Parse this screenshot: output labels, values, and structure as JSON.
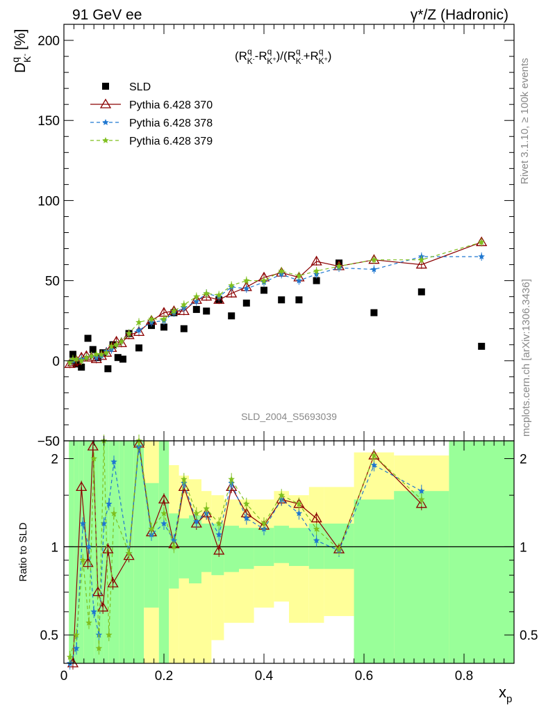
{
  "header": {
    "left": "91 GeV ee",
    "right": "γ*/Z (Hadronic)"
  },
  "main_plot": {
    "ylabel_main": "D",
    "ylabel_super": "q",
    "ylabel_sub": "K",
    "ylabel_subsup": "-",
    "ylabel_unit": "[%]",
    "formula": "(R",
    "formula_full": "(R_{K-}^q - R_{K+}^q)/(R_{K-}^q + R_{K+}^q)",
    "watermark": "SLD_2004_S5693039",
    "yticks": [
      "200",
      "150",
      "100",
      "50",
      "0",
      "−50"
    ]
  },
  "ratio_plot": {
    "ylabel": "Ratio to SLD",
    "ticks_left": [
      "2",
      "1",
      "0.5"
    ],
    "ticks_right": [
      "2",
      "1",
      "0.5"
    ]
  },
  "x_axis": {
    "label": "x",
    "label_sub": "p",
    "ticks": [
      "0",
      "0.2",
      "0.4",
      "0.6",
      "0.8"
    ]
  },
  "side_labels": {
    "rivet": "Rivet 3.1.10, ≥ 100k events",
    "mcplots": "mcplots.cern.ch [arXiv:1306.3436]"
  },
  "legend": [
    {
      "name": "SLD",
      "color": "#000000"
    },
    {
      "name": "Pythia 6.428 370",
      "color": "#8b0000"
    },
    {
      "name": "Pythia 6.428 378",
      "color": "#1f77d0"
    },
    {
      "name": "Pythia 6.428 379",
      "color": "#7fbf1f"
    }
  ],
  "chart_data": {
    "type": "scatter",
    "xlim": [
      0,
      0.9
    ],
    "ylim": [
      -50,
      210
    ],
    "ratio_ylim": [
      0.4,
      2.3
    ],
    "ratio_scale": "log",
    "grid": false,
    "legend_position": "top-left",
    "series": [
      {
        "name": "SLD",
        "color": "#000000",
        "x": [
          0.018,
          0.025,
          0.035,
          0.048,
          0.058,
          0.068,
          0.078,
          0.088,
          0.098,
          0.108,
          0.118,
          0.13,
          0.15,
          0.175,
          0.2,
          0.22,
          0.24,
          0.265,
          0.285,
          0.31,
          0.335,
          0.365,
          0.4,
          0.435,
          0.47,
          0.505,
          0.55,
          0.62,
          0.715,
          0.835
        ],
        "y": [
          4,
          -2,
          -4,
          14,
          7,
          2,
          5,
          -5,
          10,
          2,
          1,
          17,
          8,
          22,
          21,
          30,
          20,
          32,
          31,
          38,
          28,
          36,
          44,
          38,
          38,
          50,
          61,
          30,
          43,
          9
        ]
      },
      {
        "name": "Pythia 6.428 370",
        "color": "#8b0000",
        "x": [
          0.012,
          0.018,
          0.025,
          0.035,
          0.045,
          0.055,
          0.065,
          0.075,
          0.085,
          0.095,
          0.105,
          0.115,
          0.13,
          0.15,
          0.175,
          0.2,
          0.22,
          0.24,
          0.265,
          0.285,
          0.31,
          0.335,
          0.365,
          0.4,
          0.435,
          0.47,
          0.505,
          0.55,
          0.62,
          0.715,
          0.835
        ],
        "y": [
          -2,
          -1,
          0,
          2,
          3,
          2,
          1,
          3,
          5,
          8,
          12,
          11,
          16,
          18,
          25,
          30,
          31,
          31,
          38,
          40,
          38,
          42,
          46,
          52,
          55,
          52,
          62,
          59,
          63,
          60,
          74
        ]
      },
      {
        "name": "Pythia 6.428 378",
        "color": "#1f77d0",
        "x": [
          0.012,
          0.018,
          0.025,
          0.035,
          0.045,
          0.055,
          0.065,
          0.075,
          0.085,
          0.095,
          0.105,
          0.115,
          0.13,
          0.15,
          0.175,
          0.2,
          0.22,
          0.24,
          0.265,
          0.285,
          0.31,
          0.335,
          0.365,
          0.4,
          0.435,
          0.47,
          0.505,
          0.55,
          0.62,
          0.715,
          0.835
        ],
        "y": [
          -1,
          0,
          1,
          1,
          2,
          3,
          2,
          3,
          6,
          7,
          10,
          12,
          17,
          19,
          24,
          25,
          30,
          33,
          37,
          42,
          40,
          46,
          45,
          49,
          54,
          50,
          54,
          58,
          57,
          65,
          65
        ]
      },
      {
        "name": "Pythia 6.428 379",
        "color": "#7fbf1f",
        "x": [
          0.012,
          0.018,
          0.025,
          0.035,
          0.045,
          0.055,
          0.065,
          0.075,
          0.085,
          0.095,
          0.105,
          0.115,
          0.13,
          0.15,
          0.175,
          0.2,
          0.22,
          0.24,
          0.265,
          0.285,
          0.31,
          0.335,
          0.365,
          0.4,
          0.435,
          0.47,
          0.505,
          0.55,
          0.62,
          0.715,
          0.835
        ],
        "y": [
          -1,
          1,
          1,
          0,
          2,
          3,
          4,
          4,
          5,
          9,
          10,
          12,
          17,
          24,
          26,
          26,
          31,
          35,
          40,
          42,
          41,
          47,
          50,
          50,
          56,
          53,
          56,
          59,
          63,
          63,
          74
        ]
      }
    ],
    "ratio_series": [
      {
        "name": "Pythia 6.428 370",
        "x": [
          0.018,
          0.035,
          0.048,
          0.058,
          0.068,
          0.078,
          0.088,
          0.098,
          0.13,
          0.15,
          0.175,
          0.2,
          0.22,
          0.24,
          0.265,
          0.285,
          0.31,
          0.335,
          0.365,
          0.4,
          0.435,
          0.47,
          0.505,
          0.55,
          0.62,
          0.715
        ],
        "y": [
          0.3,
          1.6,
          0.88,
          2.2,
          0.7,
          0.62,
          0.98,
          0.75,
          0.93,
          2.25,
          1.12,
          1.45,
          1.02,
          1.6,
          1.2,
          1.3,
          0.97,
          1.6,
          1.3,
          1.18,
          1.45,
          1.4,
          1.25,
          0.98,
          2.05,
          1.4
        ]
      },
      {
        "name": "Pythia 6.428 378",
        "x": [
          0.012,
          0.025,
          0.038,
          0.05,
          0.06,
          0.07,
          0.08,
          0.09,
          0.1,
          0.13,
          0.15,
          0.175,
          0.2,
          0.22,
          0.24,
          0.265,
          0.285,
          0.31,
          0.335,
          0.365,
          0.4,
          0.435,
          0.47,
          0.505,
          0.55,
          0.62,
          0.715
        ],
        "y": [
          0.38,
          0.45,
          1.2,
          1.0,
          0.6,
          0.5,
          1.2,
          1.4,
          1.95,
          0.95,
          2.2,
          1.1,
          1.2,
          1.05,
          1.65,
          1.22,
          1.3,
          1.1,
          1.65,
          1.25,
          1.15,
          1.45,
          1.3,
          1.05,
          0.97,
          1.9,
          1.55
        ]
      },
      {
        "name": "Pythia 6.428 379",
        "x": [
          0.012,
          0.025,
          0.038,
          0.05,
          0.06,
          0.07,
          0.08,
          0.09,
          0.1,
          0.13,
          0.15,
          0.175,
          0.2,
          0.22,
          0.24,
          0.265,
          0.285,
          0.31,
          0.335,
          0.365,
          0.4,
          0.435,
          0.47,
          0.505,
          0.55,
          0.62,
          0.715
        ],
        "y": [
          0.42,
          0.5,
          0.9,
          0.55,
          2.0,
          0.45,
          2.3,
          0.5,
          1.3,
          0.95,
          2.3,
          1.15,
          1.3,
          1.0,
          1.7,
          1.3,
          1.35,
          1.2,
          1.7,
          1.4,
          1.2,
          1.5,
          1.4,
          1.15,
          0.98,
          2.05,
          1.45
        ]
      }
    ],
    "ratio_bands": {
      "x_edges": [
        0.01,
        0.02,
        0.03,
        0.04,
        0.05,
        0.06,
        0.07,
        0.08,
        0.09,
        0.1,
        0.11,
        0.12,
        0.14,
        0.16,
        0.19,
        0.21,
        0.23,
        0.25,
        0.275,
        0.295,
        0.32,
        0.35,
        0.38,
        0.42,
        0.45,
        0.49,
        0.52,
        0.58,
        0.66,
        0.77,
        0.9
      ],
      "green_lo": [
        0.4,
        0.4,
        0.4,
        0.4,
        0.4,
        0.4,
        0.4,
        0.4,
        0.4,
        0.4,
        0.4,
        0.4,
        0.4,
        0.62,
        0.4,
        0.72,
        0.78,
        0.75,
        0.82,
        0.8,
        0.82,
        0.84,
        0.86,
        0.88,
        0.86,
        0.84,
        0.84,
        0.4,
        0.4,
        0.4
      ],
      "green_hi": [
        2.3,
        2.3,
        2.3,
        2.3,
        2.3,
        2.3,
        2.3,
        2.3,
        2.3,
        2.3,
        2.3,
        2.3,
        2.3,
        1.65,
        2.3,
        1.3,
        1.25,
        1.28,
        1.2,
        1.2,
        1.18,
        1.16,
        1.16,
        1.18,
        1.16,
        1.2,
        1.2,
        1.45,
        1.55,
        2.3
      ],
      "yellow_lo": [
        0.4,
        0.4,
        0.4,
        0.4,
        0.4,
        0.4,
        0.4,
        0.4,
        0.4,
        0.4,
        0.4,
        0.4,
        0.4,
        0.4,
        0.4,
        0.4,
        0.4,
        0.4,
        0.4,
        0.48,
        0.55,
        0.55,
        0.62,
        0.65,
        0.55,
        0.55,
        0.58,
        0.4,
        0.4,
        0.4
      ],
      "yellow_hi": [
        2.3,
        2.3,
        2.3,
        2.3,
        2.3,
        2.3,
        2.3,
        2.3,
        2.3,
        2.3,
        2.3,
        2.3,
        2.3,
        2.3,
        2.3,
        1.9,
        1.75,
        1.7,
        1.55,
        1.5,
        1.45,
        1.45,
        1.45,
        1.55,
        1.5,
        1.6,
        1.6,
        2.1,
        2.05,
        2.3
      ]
    }
  }
}
